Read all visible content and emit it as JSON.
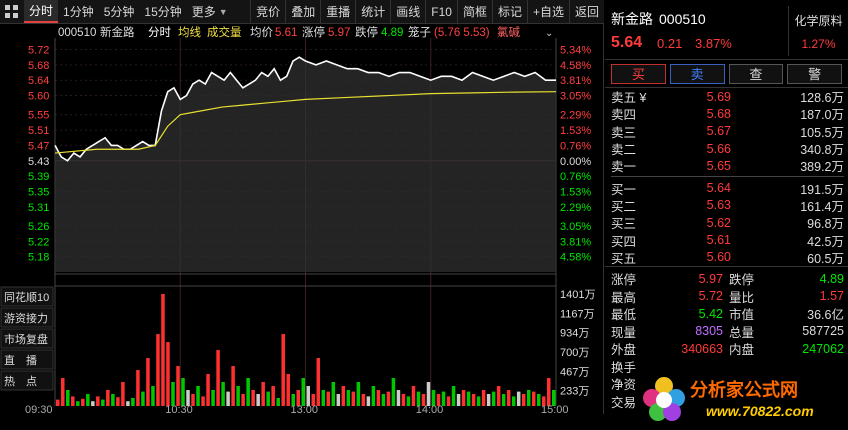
{
  "toolbar": {
    "left_tabs": [
      "分时",
      "1分钟",
      "5分钟",
      "15分钟",
      "更多"
    ],
    "right_tools": [
      "竞价",
      "叠加",
      "重播",
      "统计",
      "画线",
      "F10",
      "简框",
      "标记",
      "+自选",
      "返回"
    ]
  },
  "chart_header": {
    "code": "000510",
    "name": "新金路",
    "mode": "分时",
    "avg_label": "均线",
    "vol_label": "成交量",
    "avg_price_label": "均价",
    "avg_price": "5.61",
    "limit_up_label": "涨停",
    "limit_up": "5.97",
    "limit_down_label": "跌停",
    "limit_down": "4.89",
    "box_label": "笼子",
    "box_values": "(5.76 5.53)",
    "concept": "氯碱"
  },
  "side_menu": [
    "同花顺10",
    "游资接力",
    "市场复盘",
    "直　播",
    "热　点"
  ],
  "chart_data": {
    "type": "line",
    "title": "新金路 000510 分时",
    "x_ticks": [
      "09:30",
      "10:30",
      "13:00",
      "14:00",
      "15:00"
    ],
    "price_ticks": [
      "5.72",
      "5.68",
      "5.64",
      "5.60",
      "5.55",
      "5.51",
      "5.47",
      "5.43",
      "5.39",
      "5.35",
      "5.31",
      "5.26",
      "5.22",
      "5.18"
    ],
    "pct_ticks": [
      "5.34%",
      "4.58%",
      "3.81%",
      "3.05%",
      "2.29%",
      "1.53%",
      "0.76%",
      "0.00%",
      "0.76%",
      "1.53%",
      "2.29%",
      "3.05%",
      "3.81%",
      "4.58%"
    ],
    "vol_ticks": [
      "1401万",
      "1167万",
      "934万",
      "700万",
      "467万",
      "233万"
    ],
    "ylim": [
      5.14,
      5.75
    ],
    "prev_close": 5.43,
    "series": [
      {
        "name": "价格",
        "x": [
          0,
          3,
          6,
          9,
          12,
          15,
          18,
          21,
          24,
          27,
          30,
          33,
          36,
          39,
          42,
          45,
          48,
          51,
          54,
          57,
          60,
          63,
          66,
          69,
          72,
          75,
          78,
          81,
          84,
          87,
          90,
          93,
          96,
          99,
          102,
          105,
          108,
          111,
          114,
          117,
          120,
          125,
          130,
          135,
          140,
          145,
          150,
          155,
          160,
          165,
          170,
          175,
          180,
          185,
          190,
          195,
          200,
          205,
          210,
          215,
          220,
          225,
          230,
          235,
          240
        ],
        "values": [
          5.47,
          5.44,
          5.43,
          5.45,
          5.44,
          5.46,
          5.47,
          5.48,
          5.49,
          5.47,
          5.47,
          5.46,
          5.46,
          5.47,
          5.48,
          5.47,
          5.47,
          5.56,
          5.61,
          5.62,
          5.59,
          5.6,
          5.63,
          5.64,
          5.63,
          5.66,
          5.65,
          5.64,
          5.66,
          5.64,
          5.62,
          5.63,
          5.64,
          5.66,
          5.65,
          5.67,
          5.64,
          5.65,
          5.69,
          5.7,
          5.69,
          5.68,
          5.69,
          5.68,
          5.67,
          5.67,
          5.66,
          5.66,
          5.65,
          5.66,
          5.66,
          5.65,
          5.64,
          5.65,
          5.65,
          5.64,
          5.66,
          5.65,
          5.64,
          5.65,
          5.66,
          5.65,
          5.66,
          5.64,
          5.64
        ]
      },
      {
        "name": "均价",
        "x": [
          0,
          20,
          40,
          48,
          54,
          60,
          70,
          80,
          90,
          100,
          110,
          120,
          140,
          160,
          180,
          200,
          220,
          240
        ],
        "values": [
          5.45,
          5.46,
          5.46,
          5.47,
          5.52,
          5.55,
          5.56,
          5.57,
          5.575,
          5.58,
          5.585,
          5.59,
          5.595,
          5.6,
          5.605,
          5.607,
          5.609,
          5.61
        ]
      }
    ],
    "volume": {
      "max": 1401,
      "values": [
        80,
        350,
        200,
        120,
        60,
        90,
        150,
        60,
        120,
        80,
        200,
        150,
        110,
        300,
        60,
        100,
        450,
        180,
        600,
        250,
        900,
        1401,
        800,
        300,
        500,
        350,
        200,
        150,
        250,
        120,
        400,
        200,
        700,
        300,
        180,
        500,
        250,
        150,
        350,
        200,
        150,
        300,
        180,
        250,
        100,
        900,
        400,
        150,
        200,
        350,
        250,
        150,
        600,
        200,
        180,
        300,
        150,
        250,
        200,
        180,
        300,
        150,
        120,
        250,
        200,
        150,
        180,
        350,
        200,
        150,
        120,
        250,
        180,
        150,
        300,
        200,
        150,
        180,
        120,
        250,
        150,
        200,
        180,
        150,
        120,
        200,
        150,
        180,
        250,
        150,
        200,
        120,
        180,
        150,
        200,
        180,
        150,
        120,
        350,
        200
      ],
      "colors": [
        "r",
        "r",
        "g",
        "r",
        "g",
        "r",
        "g",
        "w",
        "r",
        "g",
        "r",
        "g",
        "r",
        "r",
        "w",
        "g",
        "r",
        "g",
        "r",
        "g",
        "r",
        "r",
        "r",
        "g",
        "r",
        "g",
        "w",
        "r",
        "g",
        "r",
        "r",
        "g",
        "r",
        "g",
        "w",
        "r",
        "g",
        "r",
        "g",
        "r",
        "w",
        "r",
        "g",
        "r",
        "g",
        "r",
        "r",
        "g",
        "r",
        "g",
        "w",
        "r",
        "r",
        "g",
        "r",
        "g",
        "w",
        "r",
        "g",
        "r",
        "g",
        "r",
        "w",
        "g",
        "r",
        "g",
        "r",
        "g",
        "w",
        "r",
        "g",
        "r",
        "g",
        "r",
        "w",
        "g",
        "r",
        "g",
        "r",
        "g",
        "w",
        "r",
        "g",
        "r",
        "g",
        "r",
        "w",
        "g",
        "r",
        "g",
        "r",
        "g",
        "w",
        "r",
        "g",
        "r",
        "g",
        "r",
        "r",
        "g"
      ]
    }
  },
  "right_panel": {
    "name": "新金路",
    "code": "000510",
    "tag_title": "化学原料",
    "tag_pct": "1.27%",
    "price": "5.64",
    "change": "0.21",
    "change_pct": "3.87%",
    "buttons": {
      "buy": "买",
      "sell": "卖",
      "check": "查",
      "alert": "警"
    },
    "sells": [
      {
        "label": "卖五 ¥",
        "price": "5.69",
        "vol": "128.6万"
      },
      {
        "label": "卖四",
        "price": "5.68",
        "vol": "187.0万"
      },
      {
        "label": "卖三",
        "price": "5.67",
        "vol": "105.5万"
      },
      {
        "label": "卖二",
        "price": "5.66",
        "vol": "340.8万"
      },
      {
        "label": "卖一",
        "price": "5.65",
        "vol": "389.2万"
      }
    ],
    "buys": [
      {
        "label": "买一",
        "price": "5.64",
        "vol": "191.5万"
      },
      {
        "label": "买二",
        "price": "5.63",
        "vol": "161.4万"
      },
      {
        "label": "买三",
        "price": "5.62",
        "vol": "96.8万"
      },
      {
        "label": "买四",
        "price": "5.61",
        "vol": "42.5万"
      },
      {
        "label": "买五",
        "price": "5.60",
        "vol": "60.5万"
      }
    ],
    "stats": [
      {
        "k": "涨停",
        "v": "5.97",
        "vc": "red",
        "k2": "跌停",
        "v2": "4.89",
        "v2c": "green"
      },
      {
        "k": "最高",
        "v": "5.72",
        "vc": "red",
        "k2": "量比",
        "v2": "1.57",
        "v2c": "red"
      },
      {
        "k": "最低",
        "v": "5.42",
        "vc": "green",
        "k2": "市值",
        "v2": "36.6亿",
        "v2c": "white"
      },
      {
        "k": "现量",
        "v": "8305",
        "vc": "purple",
        "k2": "总量",
        "v2": "587725",
        "v2c": "white"
      },
      {
        "k": "外盘",
        "v": "340663",
        "vc": "red",
        "k2": "内盘",
        "v2": "247062",
        "v2c": "green"
      },
      {
        "k": "换手",
        "v": "",
        "vc": "white",
        "k2": "",
        "v2": "",
        "v2c": "white"
      },
      {
        "k": "净资",
        "v": "",
        "vc": "white",
        "k2": "",
        "v2": "",
        "v2c": "white"
      },
      {
        "k": "交易",
        "v": "",
        "vc": "white",
        "k2": "",
        "v2": "",
        "v2c": "white"
      }
    ]
  },
  "watermark": {
    "title": "分析家公式网",
    "url": "www.70822.com"
  }
}
